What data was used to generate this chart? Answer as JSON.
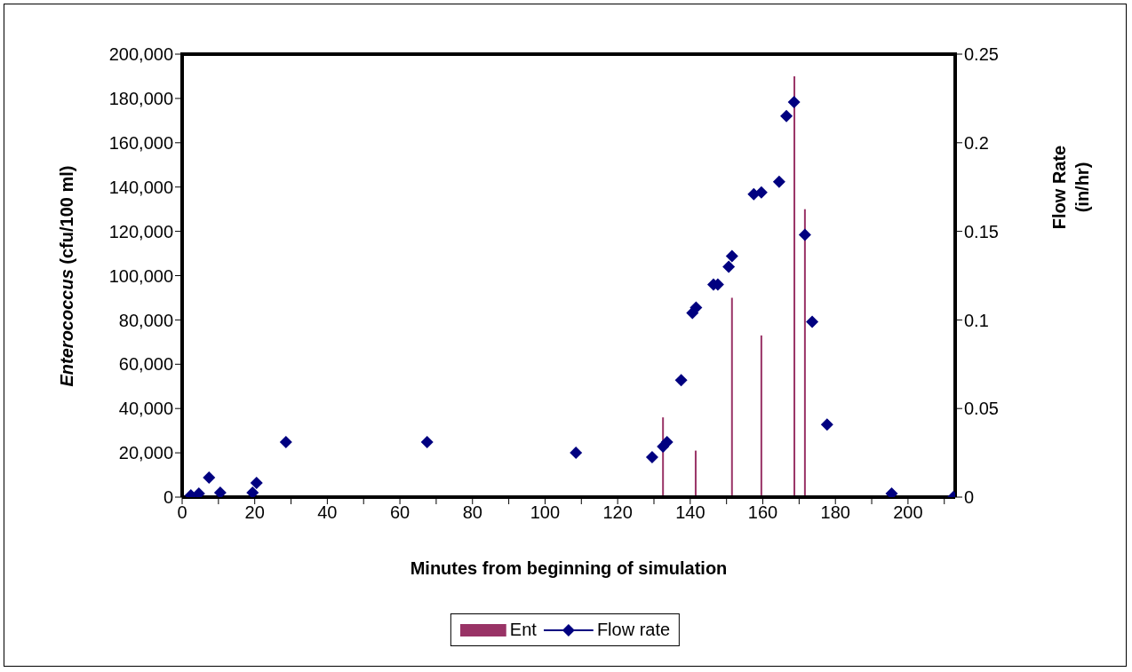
{
  "chart_data": {
    "type": "bar",
    "xlabel": "Minutes from beginning of simulation",
    "ylabel": "Enterococcus (cfu/100 ml)",
    "y2label": "Flow Rate (in/hr)",
    "series": [
      {
        "name": "Ent",
        "color": "#993366",
        "x": [
          132.5,
          141.5,
          151.5,
          159.6,
          168.7,
          171.6
        ],
        "values": [
          36000,
          21000,
          90000,
          73000,
          190000,
          130000
        ]
      },
      {
        "name": "Flow rate",
        "type": "scatter",
        "axis": "y2",
        "color": "#000080",
        "marker": "diamond",
        "x": [
          2.4,
          4.6,
          7.4,
          10.5,
          19.4,
          20.5,
          28.6,
          67.5,
          108.5,
          129.5,
          132.5,
          133.6,
          137.5,
          140.6,
          141.6,
          146.4,
          147.6,
          150.6,
          151.5,
          157.5,
          159.6,
          164.5,
          166.5,
          168.6,
          171.6,
          173.6,
          177.7,
          195.5,
          212.5
        ],
        "values": [
          0.001,
          0.002,
          0.011,
          0.0025,
          0.0025,
          0.008,
          0.031,
          0.031,
          0.025,
          0.0225,
          0.0285,
          0.031,
          0.066,
          0.104,
          0.107,
          0.12,
          0.12,
          0.13,
          0.136,
          0.171,
          0.172,
          0.178,
          0.215,
          0.223,
          0.148,
          0.099,
          0.041,
          0.002,
          0
        ]
      }
    ],
    "xlim": [
      0,
      213
    ],
    "xticks": [
      0,
      {
        "value": 10,
        "label": null
      },
      20,
      {
        "value": 30,
        "label": null
      },
      40,
      {
        "value": 50,
        "label": null
      },
      60,
      {
        "value": 70,
        "label": null
      },
      80,
      {
        "value": 90,
        "label": null
      },
      100,
      {
        "value": 110,
        "label": null
      },
      120,
      {
        "value": 130,
        "label": null
      },
      140,
      {
        "value": 150,
        "label": null
      },
      160,
      {
        "value": 170,
        "label": null
      },
      180,
      {
        "value": 190,
        "label": null
      },
      200,
      {
        "value": 210,
        "label": null
      }
    ],
    "ylim": [
      0,
      200000
    ],
    "yticks": [
      {
        "value": 0,
        "label": "0"
      },
      {
        "value": 20000,
        "label": "20,000"
      },
      {
        "value": 40000,
        "label": "40,000"
      },
      {
        "value": 60000,
        "label": "60,000"
      },
      {
        "value": 80000,
        "label": "80,000"
      },
      {
        "value": 100000,
        "label": "100,000"
      },
      {
        "value": 120000,
        "label": "120,000"
      },
      {
        "value": 140000,
        "label": "140,000"
      },
      {
        "value": 160000,
        "label": "160,000"
      },
      {
        "value": 180000,
        "label": "180,000"
      },
      {
        "value": 200000,
        "label": "200,000"
      }
    ],
    "y2lim": [
      0,
      0.25
    ],
    "y2ticks": [
      0,
      0.05,
      0.1,
      0.15,
      0.2,
      0.25
    ],
    "grid": false,
    "legend": "bottom"
  }
}
